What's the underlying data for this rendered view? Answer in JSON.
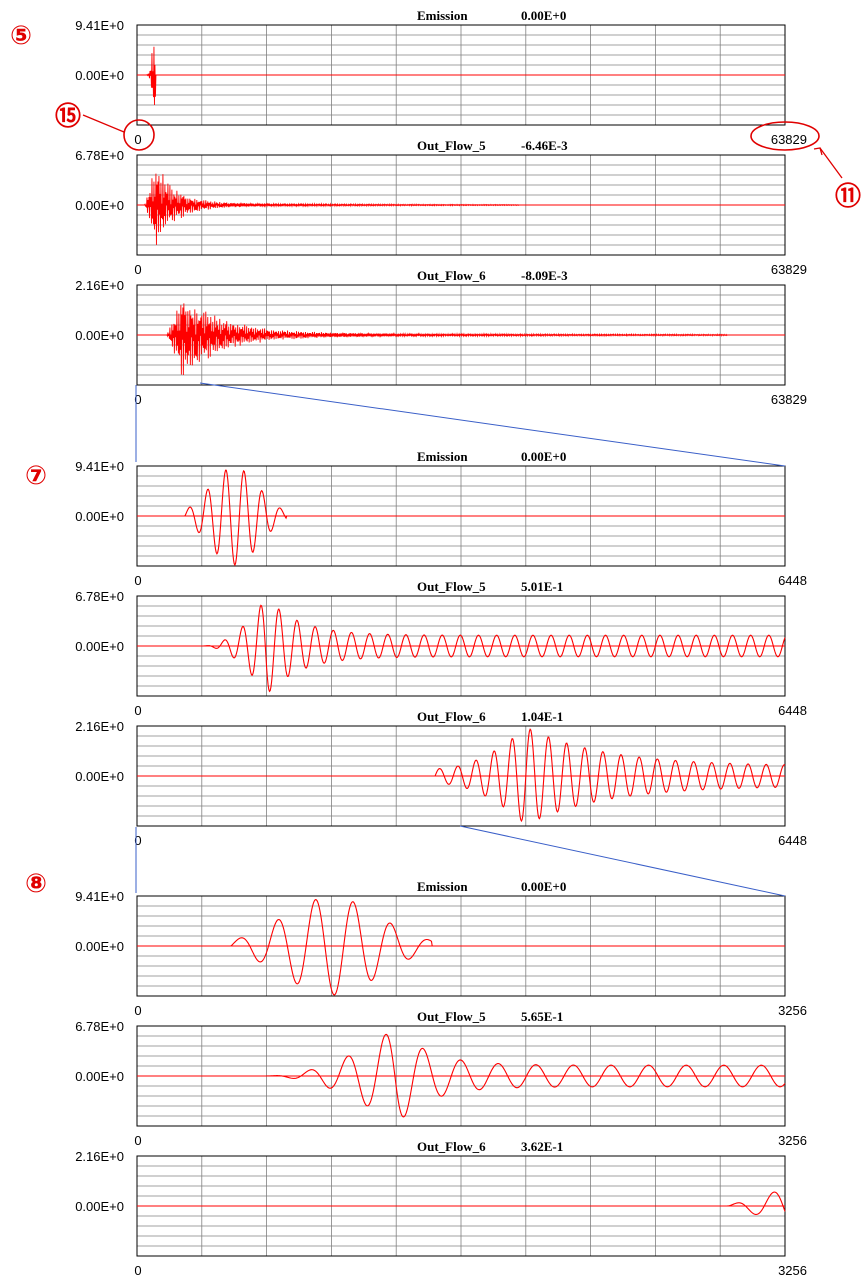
{
  "colors": {
    "wave": "#ff0000",
    "grid": "#808080",
    "frame": "#000000",
    "zoom_line": "#3a5fc8",
    "annotation": "#e00000"
  },
  "annotations": {
    "a5": "⑤",
    "a15": "⑮",
    "a11": "⑪",
    "a7": "⑦",
    "a8": "⑧"
  },
  "groups": [
    {
      "marker": "a5",
      "x_max": 63829
    },
    {
      "marker": "a7",
      "x_max": 6448
    },
    {
      "marker": "a8",
      "x_max": 3256
    }
  ],
  "chart_data": [
    {
      "type": "line",
      "group": 0,
      "title": "Emission",
      "value": "0.00E+0",
      "ymax_label": "9.41E+0",
      "zero_label": "0.00E+0",
      "xmin_label": "0",
      "xmax_label": "63829",
      "xlim": [
        0,
        63829
      ],
      "signal": {
        "start": 0.012,
        "end": 0.029,
        "peak": 0.028,
        "period": 0.004,
        "amp": 1.0,
        "decay": 0,
        "envelope": "gauss"
      }
    },
    {
      "type": "line",
      "group": 0,
      "title": "Out_Flow_5",
      "value": "-6.46E-3",
      "ymax_label": "6.78E+0",
      "zero_label": "0.00E+0",
      "xmin_label": "0",
      "xmax_label": "63829",
      "xlim": [
        0,
        63829
      ],
      "signal": {
        "start": 0.012,
        "end": 0.59,
        "peak": 0.03,
        "period": 0.004,
        "amp": 0.95,
        "decay": 0.03,
        "envelope": "exp"
      }
    },
    {
      "type": "line",
      "group": 0,
      "title": "Out_Flow_6",
      "value": "-8.09E-3",
      "ymax_label": "2.16E+0",
      "zero_label": "0.00E+0",
      "xmin_label": "0",
      "xmax_label": "63829",
      "xlim": [
        0,
        63829
      ],
      "signal": {
        "start": 0.046,
        "end": 0.91,
        "peak": 0.07,
        "period": 0.004,
        "amp": 0.95,
        "decay": 0.06,
        "envelope": "exp"
      }
    },
    {
      "type": "line",
      "group": 1,
      "title": "Emission",
      "value": "0.00E+0",
      "ymax_label": "9.41E+0",
      "zero_label": "0.00E+0",
      "xmin_label": "0",
      "xmax_label": "6448",
      "xlim": [
        0,
        6448
      ],
      "signal": {
        "start": 0.074,
        "end": 0.23,
        "peak": 0.15,
        "period": 0.028,
        "amp": 1.0,
        "decay": 0,
        "envelope": "gauss"
      }
    },
    {
      "type": "line",
      "group": 1,
      "title": "Out_Flow_5",
      "value": "5.01E-1",
      "ymax_label": "6.78E+0",
      "zero_label": "0.00E+0",
      "xmin_label": "0",
      "xmax_label": "6448",
      "xlim": [
        0,
        6448
      ],
      "signal": {
        "start": 0.1,
        "end": 1.0,
        "peak": 0.2,
        "period": 0.028,
        "amp": 1.0,
        "decay": 0.02,
        "envelope": "burst"
      }
    },
    {
      "type": "line",
      "group": 1,
      "title": "Out_Flow_6",
      "value": "1.04E-1",
      "ymax_label": "2.16E+0",
      "zero_label": "0.00E+0",
      "xmin_label": "0",
      "xmax_label": "6448",
      "xlim": [
        0,
        6448
      ],
      "signal": {
        "start": 0.46,
        "end": 1.0,
        "peak": 0.6,
        "period": 0.028,
        "amp": 1.0,
        "decay": 0.12,
        "envelope": "burst2"
      }
    },
    {
      "type": "line",
      "group": 2,
      "title": "Emission",
      "value": "0.00E+0",
      "ymax_label": "9.41E+0",
      "zero_label": "0.00E+0",
      "xmin_label": "0",
      "xmax_label": "3256",
      "xlim": [
        0,
        3256
      ],
      "signal": {
        "start": 0.145,
        "end": 0.455,
        "peak": 0.3,
        "period": 0.058,
        "amp": 1.0,
        "decay": 0,
        "envelope": "gauss"
      }
    },
    {
      "type": "line",
      "group": 2,
      "title": "Out_Flow_5",
      "value": "5.65E-1",
      "ymax_label": "6.78E+0",
      "zero_label": "0.00E+0",
      "xmin_label": "0",
      "xmax_label": "3256",
      "xlim": [
        0,
        3256
      ],
      "signal": {
        "start": 0.195,
        "end": 1.0,
        "peak": 0.4,
        "period": 0.058,
        "amp": 1.0,
        "decay": 0.12,
        "envelope": "burst"
      }
    },
    {
      "type": "line",
      "group": 2,
      "title": "Out_Flow_6",
      "value": "3.62E-1",
      "ymax_label": "2.16E+0",
      "zero_label": "0.00E+0",
      "xmin_label": "0",
      "xmax_label": "3256",
      "xlim": [
        0,
        3256
      ],
      "signal": {
        "start": 0.91,
        "end": 1.0,
        "peak": 0.98,
        "period": 0.058,
        "amp": 0.35,
        "decay": 0.05,
        "envelope": "rise"
      }
    }
  ]
}
